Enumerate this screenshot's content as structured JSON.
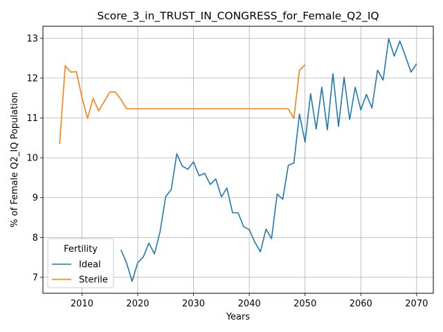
{
  "chart_data": {
    "type": "line",
    "title": "Score_3_in_TRUST_IN_CONGRESS_for_Female_Q2_IQ",
    "xlabel": "Years",
    "ylabel": "% of Female Q2_IQ Population",
    "xlim": [
      2003,
      2073
    ],
    "ylim": [
      6.6,
      13.3
    ],
    "xticks": [
      2010,
      2020,
      2030,
      2040,
      2050,
      2060,
      2070
    ],
    "yticks": [
      7,
      8,
      9,
      10,
      11,
      12,
      13
    ],
    "grid": true,
    "legend": {
      "title": "Fertility",
      "position": "lower-left"
    },
    "series": [
      {
        "name": "Ideal",
        "color": "#1f77b4",
        "x": [
          2017,
          2018,
          2019,
          2020,
          2021,
          2022,
          2023,
          2024,
          2025,
          2026,
          2027,
          2028,
          2029,
          2030,
          2031,
          2032,
          2033,
          2034,
          2035,
          2036,
          2037,
          2038,
          2039,
          2040,
          2041,
          2042,
          2043,
          2044,
          2045,
          2046,
          2047,
          2048,
          2049,
          2050,
          2051,
          2052,
          2053,
          2054,
          2055,
          2056,
          2057,
          2058,
          2059,
          2060,
          2061,
          2062,
          2063,
          2064,
          2065,
          2066,
          2067,
          2068,
          2069,
          2070
        ],
        "values": [
          7.69,
          7.36,
          6.9,
          7.37,
          7.51,
          7.86,
          7.59,
          8.14,
          9.02,
          9.2,
          10.1,
          9.79,
          9.71,
          9.9,
          9.55,
          9.61,
          9.33,
          9.47,
          9.02,
          9.24,
          8.62,
          8.62,
          8.27,
          8.2,
          7.88,
          7.64,
          8.21,
          7.97,
          9.09,
          8.96,
          9.81,
          9.87,
          11.1,
          10.39,
          11.61,
          10.72,
          11.77,
          10.7,
          12.11,
          10.79,
          12.02,
          10.96,
          11.77,
          11.2,
          11.59,
          11.25,
          12.2,
          11.95,
          12.99,
          12.55,
          12.93,
          12.55,
          12.15,
          12.36
        ]
      },
      {
        "name": "Sterile",
        "color": "#ff7f0e",
        "x": [
          2006,
          2007,
          2008,
          2009,
          2010,
          2011,
          2012,
          2013,
          2014,
          2015,
          2016,
          2017,
          2018,
          2019,
          2020,
          2021,
          2022,
          2023,
          2024,
          2025,
          2026,
          2027,
          2028,
          2029,
          2030,
          2031,
          2032,
          2033,
          2034,
          2035,
          2036,
          2037,
          2038,
          2039,
          2040,
          2041,
          2042,
          2043,
          2044,
          2045,
          2046,
          2047,
          2048,
          2049,
          2050
        ],
        "values": [
          10.35,
          12.31,
          12.15,
          12.16,
          11.52,
          10.99,
          11.49,
          11.18,
          11.41,
          11.65,
          11.65,
          11.46,
          11.23,
          11.23,
          11.23,
          11.23,
          11.23,
          11.23,
          11.23,
          11.23,
          11.23,
          11.23,
          11.23,
          11.23,
          11.23,
          11.23,
          11.23,
          11.23,
          11.23,
          11.23,
          11.23,
          11.23,
          11.23,
          11.23,
          11.23,
          11.23,
          11.23,
          11.23,
          11.23,
          11.23,
          11.23,
          11.23,
          10.99,
          12.2,
          12.33
        ]
      }
    ]
  }
}
